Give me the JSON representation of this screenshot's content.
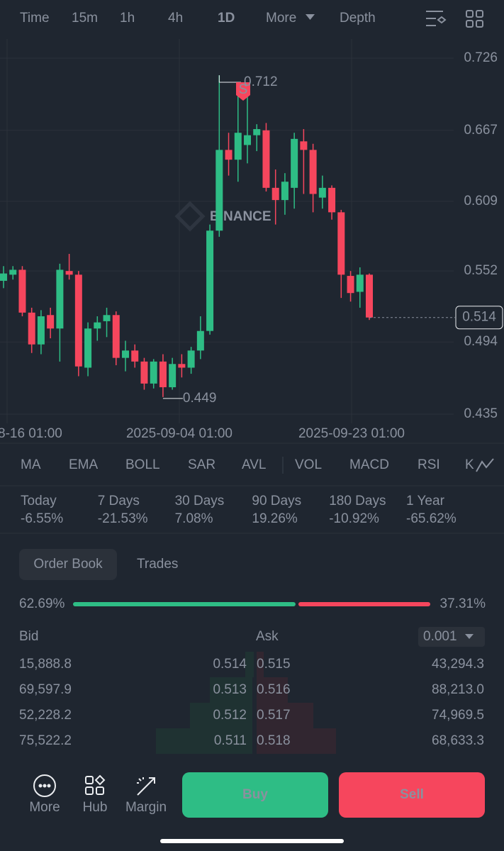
{
  "toolbar": {
    "items": [
      "Time",
      "15m",
      "1h",
      "4h",
      "1D",
      "More",
      "Depth"
    ],
    "active": 4
  },
  "chart": {
    "type": "candlestick",
    "watermark": "BINANCE",
    "ylim": [
      0.435,
      0.726
    ],
    "yticks": [
      0.726,
      0.667,
      0.609,
      0.552,
      0.494,
      0.435
    ],
    "x_labels": [
      "8-16 01:00",
      "2025-09-04 01:00",
      "2025-09-23 01:00"
    ],
    "up_color": "#2ebd85",
    "down_color": "#f6465d",
    "candles": [
      {
        "o": 0.544,
        "h": 0.556,
        "l": 0.538,
        "c": 0.55
      },
      {
        "o": 0.549,
        "h": 0.556,
        "l": 0.545,
        "c": 0.553
      },
      {
        "o": 0.553,
        "h": 0.556,
        "l": 0.515,
        "c": 0.518
      },
      {
        "o": 0.518,
        "h": 0.522,
        "l": 0.485,
        "c": 0.492
      },
      {
        "o": 0.492,
        "h": 0.52,
        "l": 0.484,
        "c": 0.515
      },
      {
        "o": 0.516,
        "h": 0.522,
        "l": 0.497,
        "c": 0.505
      },
      {
        "o": 0.505,
        "h": 0.558,
        "l": 0.478,
        "c": 0.553
      },
      {
        "o": 0.552,
        "h": 0.566,
        "l": 0.545,
        "c": 0.549
      },
      {
        "o": 0.549,
        "h": 0.552,
        "l": 0.466,
        "c": 0.474
      },
      {
        "o": 0.473,
        "h": 0.51,
        "l": 0.466,
        "c": 0.505
      },
      {
        "o": 0.505,
        "h": 0.515,
        "l": 0.495,
        "c": 0.51
      },
      {
        "o": 0.511,
        "h": 0.522,
        "l": 0.498,
        "c": 0.516
      },
      {
        "o": 0.516,
        "h": 0.519,
        "l": 0.475,
        "c": 0.481
      },
      {
        "o": 0.481,
        "h": 0.495,
        "l": 0.47,
        "c": 0.487
      },
      {
        "o": 0.487,
        "h": 0.492,
        "l": 0.473,
        "c": 0.478
      },
      {
        "o": 0.478,
        "h": 0.481,
        "l": 0.455,
        "c": 0.46
      },
      {
        "o": 0.46,
        "h": 0.48,
        "l": 0.456,
        "c": 0.478
      },
      {
        "o": 0.478,
        "h": 0.484,
        "l": 0.449,
        "c": 0.457
      },
      {
        "o": 0.457,
        "h": 0.481,
        "l": 0.455,
        "c": 0.476
      },
      {
        "o": 0.476,
        "h": 0.484,
        "l": 0.465,
        "c": 0.473
      },
      {
        "o": 0.473,
        "h": 0.49,
        "l": 0.468,
        "c": 0.487
      },
      {
        "o": 0.487,
        "h": 0.515,
        "l": 0.48,
        "c": 0.503
      },
      {
        "o": 0.503,
        "h": 0.59,
        "l": 0.5,
        "c": 0.585
      },
      {
        "o": 0.585,
        "h": 0.712,
        "l": 0.58,
        "c": 0.651
      },
      {
        "o": 0.651,
        "h": 0.665,
        "l": 0.63,
        "c": 0.643
      },
      {
        "o": 0.643,
        "h": 0.7,
        "l": 0.625,
        "c": 0.665
      },
      {
        "o": 0.655,
        "h": 0.697,
        "l": 0.64,
        "c": 0.663
      },
      {
        "o": 0.663,
        "h": 0.672,
        "l": 0.65,
        "c": 0.668
      },
      {
        "o": 0.667,
        "h": 0.673,
        "l": 0.617,
        "c": 0.62
      },
      {
        "o": 0.62,
        "h": 0.635,
        "l": 0.59,
        "c": 0.61
      },
      {
        "o": 0.61,
        "h": 0.632,
        "l": 0.598,
        "c": 0.625
      },
      {
        "o": 0.62,
        "h": 0.665,
        "l": 0.603,
        "c": 0.66
      },
      {
        "o": 0.658,
        "h": 0.668,
        "l": 0.615,
        "c": 0.651
      },
      {
        "o": 0.651,
        "h": 0.656,
        "l": 0.6,
        "c": 0.615
      },
      {
        "o": 0.612,
        "h": 0.63,
        "l": 0.603,
        "c": 0.62
      },
      {
        "o": 0.62,
        "h": 0.622,
        "l": 0.594,
        "c": 0.6
      },
      {
        "o": 0.6,
        "h": 0.602,
        "l": 0.53,
        "c": 0.549
      },
      {
        "o": 0.548,
        "h": 0.552,
        "l": 0.527,
        "c": 0.534
      },
      {
        "o": 0.535,
        "h": 0.555,
        "l": 0.522,
        "c": 0.549
      },
      {
        "o": 0.549,
        "h": 0.55,
        "l": 0.512,
        "c": 0.514
      }
    ],
    "high": 0.712,
    "low": 0.449,
    "last": 0.514,
    "signal": "S"
  },
  "indicators": [
    "MA",
    "EMA",
    "BOLL",
    "SAR",
    "AVL",
    "VOL",
    "MACD",
    "RSI",
    "K"
  ],
  "performance": [
    {
      "label": "Today",
      "value": "-6.55%"
    },
    {
      "label": "7 Days",
      "value": "-21.53%"
    },
    {
      "label": "30 Days",
      "value": "7.08%"
    },
    {
      "label": "90 Days",
      "value": "19.26%"
    },
    {
      "label": "180 Days",
      "value": "-10.92%"
    },
    {
      "label": "1 Year",
      "value": "-65.62%"
    }
  ],
  "tabs": [
    "Order Book",
    "Trades"
  ],
  "ratio": {
    "bid": 62.69,
    "bid_label": "62.69%",
    "ask": 37.31,
    "ask_label": "37.31%"
  },
  "book": {
    "bid_header": "Bid",
    "ask_header": "Ask",
    "precision": "0.001",
    "rows": [
      {
        "bid_qty": "15,888.8",
        "bid": "0.514",
        "ask": "0.515",
        "ask_qty": "43,294.3"
      },
      {
        "bid_qty": "69,597.9",
        "bid": "0.513",
        "ask": "0.516",
        "ask_qty": "88,213.0"
      },
      {
        "bid_qty": "52,228.2",
        "bid": "0.512",
        "ask": "0.517",
        "ask_qty": "74,969.5"
      },
      {
        "bid_qty": "75,522.2",
        "bid": "0.511",
        "ask": "0.518",
        "ask_qty": "68,633.3"
      }
    ]
  },
  "actions": [
    "More",
    "Hub",
    "Margin"
  ],
  "buy": "Buy",
  "sell": "Sell"
}
